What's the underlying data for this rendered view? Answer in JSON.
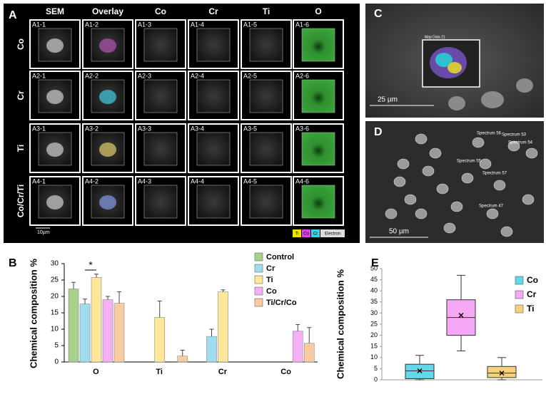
{
  "panel_a": {
    "label": "A",
    "columns": [
      "SEM",
      "Overlay",
      "Co",
      "Cr",
      "Ti",
      "O"
    ],
    "rows": [
      "Co",
      "Cr",
      "Ti",
      "Co/Cr/Ti"
    ],
    "cells": [
      [
        "A1-1",
        "A1-2",
        "A1-3",
        "A1-4",
        "A1-5",
        "A1-6"
      ],
      [
        "A2-1",
        "A2-2",
        "A2-3",
        "A2-4",
        "A2-5",
        "A2-6"
      ],
      [
        "A3-1",
        "A3-2",
        "A3-3",
        "A3-4",
        "A3-5",
        "A3-6"
      ],
      [
        "A4-1",
        "A4-2",
        "A4-3",
        "A4-4",
        "A4-5",
        "A4-6"
      ]
    ],
    "scale_bar": "10µm",
    "legend": [
      "Ti",
      "Co",
      "Cr",
      "Electron"
    ]
  },
  "panel_c": {
    "label": "C",
    "scale_bar": "25 µm",
    "map_label": "Map Data 21"
  },
  "panel_d": {
    "label": "D",
    "scale_bar": "50 µm",
    "spectra": [
      "Spectrum 56",
      "Spectrum 53",
      "Spectrum 54",
      "Spectrum 55",
      "Spectrum 57",
      "Spectrum 47"
    ]
  },
  "chart_data": [
    {
      "type": "bar",
      "label": "B",
      "y_label": "Chemical composition %",
      "categories": [
        "O",
        "Ti",
        "Cr",
        "Co"
      ],
      "ylim": [
        0,
        30
      ],
      "yticks": [
        0,
        5,
        10,
        15,
        20,
        25,
        30
      ],
      "annotation": "*",
      "series": [
        {
          "name": "Control",
          "color": "#a9d18e",
          "values": [
            22.3,
            null,
            null,
            null
          ],
          "errors": [
            2,
            null,
            null,
            null
          ]
        },
        {
          "name": "Cr",
          "color": "#9fdcf0",
          "values": [
            17.7,
            null,
            7.8,
            null
          ],
          "errors": [
            1.5,
            null,
            2.2,
            null
          ]
        },
        {
          "name": "Ti",
          "color": "#ffe699",
          "values": [
            25.8,
            13.6,
            21.4,
            null
          ],
          "errors": [
            1,
            5,
            0.6,
            null
          ]
        },
        {
          "name": "Co",
          "color": "#f4b0f4",
          "values": [
            19,
            null,
            null,
            9.4
          ],
          "errors": [
            1,
            null,
            null,
            2
          ]
        },
        {
          "name": "Ti/Cr/Co",
          "color": "#f8cba0",
          "values": [
            17.9,
            1.8,
            null,
            5.7
          ],
          "errors": [
            3.5,
            1.8,
            null,
            4.8
          ]
        }
      ]
    },
    {
      "type": "box",
      "label": "E",
      "y_label": "Chemical composition %",
      "ylim": [
        0,
        50
      ],
      "yticks": [
        0,
        5,
        10,
        15,
        20,
        25,
        30,
        35,
        40,
        45,
        50
      ],
      "series": [
        {
          "name": "Co",
          "color": "#66d6ea",
          "min": 0,
          "q1": 0.5,
          "median": 4,
          "q3": 7,
          "max": 11,
          "mean": 4
        },
        {
          "name": "Cr",
          "color": "#f5a8f5",
          "min": 13,
          "q1": 20,
          "median": 28,
          "q3": 36,
          "max": 47,
          "mean": 29
        },
        {
          "name": "Ti",
          "color": "#f7d27c",
          "min": 0,
          "q1": 1,
          "median": 3,
          "q3": 6,
          "max": 10,
          "mean": 3
        }
      ]
    }
  ]
}
